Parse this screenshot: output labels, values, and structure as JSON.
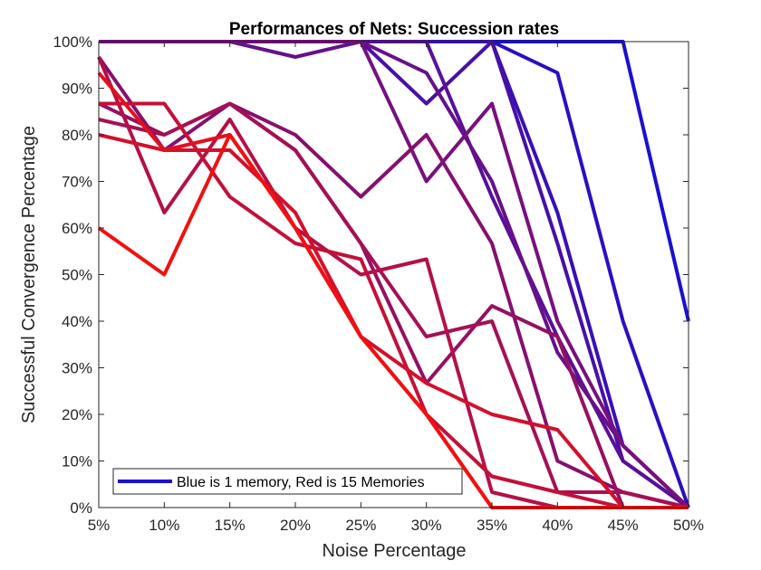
{
  "chart_data": {
    "type": "line",
    "title": "Performances of Nets: Succession rates",
    "xlabel": "Noise Percentage",
    "ylabel": "Successful Convergence Percentage",
    "x": [
      5,
      10,
      15,
      20,
      25,
      30,
      35,
      40,
      45,
      50
    ],
    "x_tick_labels": [
      "5%",
      "10%",
      "15%",
      "20%",
      "25%",
      "30%",
      "35%",
      "40%",
      "45%",
      "50%"
    ],
    "xlim": [
      5,
      50
    ],
    "ylim": [
      0,
      100
    ],
    "y_ticks": [
      0,
      10,
      20,
      30,
      40,
      50,
      60,
      70,
      80,
      90,
      100
    ],
    "y_tick_labels": [
      "0%",
      "10%",
      "20%",
      "30%",
      "40%",
      "50%",
      "60%",
      "70%",
      "80%",
      "90%",
      "100%"
    ],
    "grid": false,
    "legend": {
      "location": "bottom-left",
      "entries": [
        {
          "label": "Blue is 1 memory, Red is 15 Memories",
          "color": "#1a10d0"
        }
      ]
    },
    "color_scale": {
      "start": "#1a10d0",
      "end": "#f21010"
    },
    "series": [
      {
        "values": [
          100,
          100,
          100,
          100,
          100,
          100,
          100,
          100,
          100,
          40
        ]
      },
      {
        "values": [
          100,
          100,
          100,
          100,
          100,
          100,
          100,
          93.3,
          40,
          0
        ]
      },
      {
        "values": [
          100,
          100,
          100,
          100,
          100,
          100,
          100,
          63.3,
          13.3,
          0
        ]
      },
      {
        "values": [
          100,
          100,
          100,
          100,
          100,
          86.7,
          100,
          56.7,
          10,
          0
        ]
      },
      {
        "values": [
          100,
          100,
          100,
          100,
          100,
          100,
          66.7,
          36.7,
          10,
          0
        ]
      },
      {
        "values": [
          100,
          100,
          100,
          96.7,
          100,
          93.3,
          70,
          33.3,
          13.3,
          0
        ]
      },
      {
        "values": [
          100,
          100,
          100,
          100,
          100,
          70,
          86.7,
          40,
          13.3,
          0
        ]
      },
      {
        "values": [
          96.7,
          76.7,
          86.7,
          80,
          66.7,
          80,
          56.7,
          10,
          3.3,
          0
        ]
      },
      {
        "values": [
          86.7,
          80,
          86.7,
          76.7,
          56.7,
          26.7,
          43.3,
          36.7,
          0,
          0
        ]
      },
      {
        "values": [
          83.3,
          80,
          86.7,
          76.7,
          56.7,
          36.7,
          40,
          3.3,
          3.3,
          0
        ]
      },
      {
        "values": [
          96.7,
          63.3,
          83.3,
          60,
          50,
          53.3,
          3.3,
          0,
          0,
          0
        ]
      },
      {
        "values": [
          86.7,
          86.7,
          66.7,
          56.7,
          53.3,
          20,
          6.7,
          3.3,
          0,
          0
        ]
      },
      {
        "values": [
          80,
          76.7,
          76.7,
          63.3,
          36.7,
          26.7,
          20,
          16.7,
          0,
          0
        ]
      },
      {
        "values": [
          93.3,
          76.7,
          80,
          60,
          36.7,
          20,
          0,
          0,
          0,
          0
        ]
      },
      {
        "values": [
          60,
          50,
          80,
          60,
          36.7,
          20,
          0,
          0,
          0,
          0
        ]
      }
    ]
  }
}
